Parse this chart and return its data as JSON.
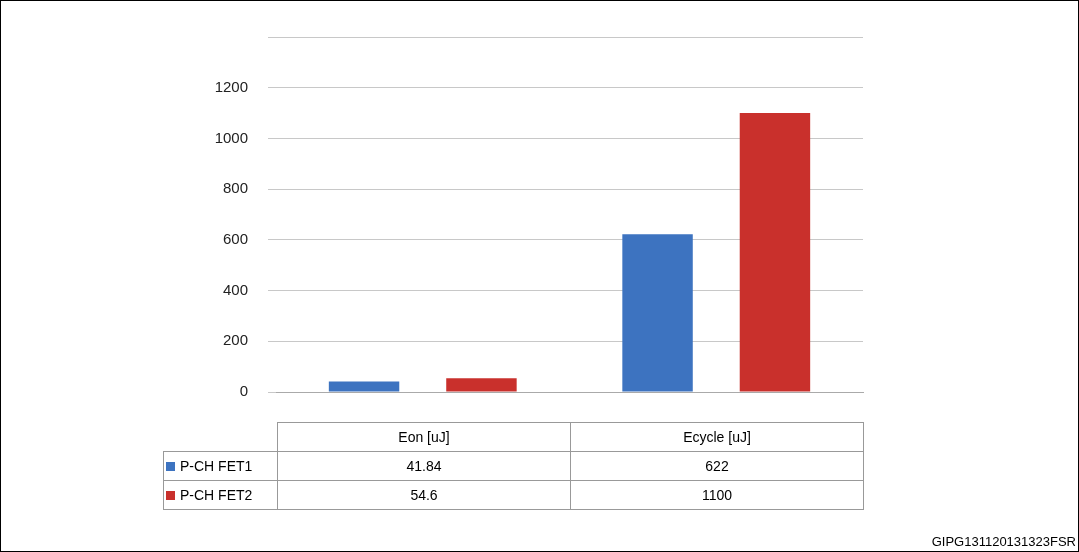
{
  "chart_data": {
    "type": "bar",
    "categories": [
      "Eon [uJ]",
      "Ecycle [uJ]"
    ],
    "series": [
      {
        "name": "P-CH FET1",
        "color": "#3d73c0",
        "values": [
          41.84,
          622
        ]
      },
      {
        "name": "P-CH FET2",
        "color": "#c9302c",
        "values": [
          54.6,
          1100
        ]
      }
    ],
    "ylim": [
      0,
      1400
    ],
    "yticks": [
      0,
      200,
      400,
      600,
      800,
      1000,
      {
        "value": 1200,
        "label": "1200"
      },
      {
        "value": 1400,
        "label": null
      }
    ],
    "grid": "y",
    "legend": "bottom",
    "data_labels": true,
    "annotations": [
      "GIPG131120131323FSR"
    ]
  }
}
